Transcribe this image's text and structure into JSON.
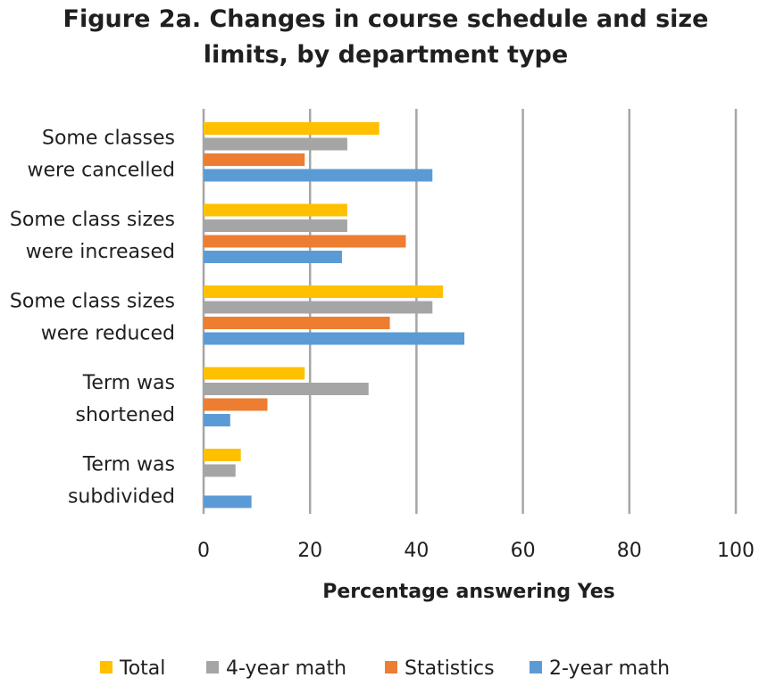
{
  "chart_data": {
    "type": "bar",
    "orientation": "horizontal",
    "title": "Figure 2a. Changes in course schedule and size limits, by department type",
    "xlabel": "Percentage answering Yes",
    "ylabel": "",
    "xlim": [
      0,
      100
    ],
    "x_ticks": [
      0,
      20,
      40,
      60,
      80,
      100
    ],
    "grid": "vertical",
    "legend_position": "bottom",
    "categories": [
      "Some classes were cancelled",
      "Some class sizes were increased",
      "Some class sizes were reduced",
      "Term was shortened",
      "Term was subdivided"
    ],
    "category_lines": [
      [
        "Some classes",
        "were cancelled"
      ],
      [
        "Some class sizes",
        "were increased"
      ],
      [
        "Some class sizes",
        "were reduced"
      ],
      [
        "Term was",
        "shortened"
      ],
      [
        "Term was",
        "subdivided"
      ]
    ],
    "series": [
      {
        "name": "Total",
        "color": "#ffc000",
        "values": [
          33,
          27,
          45,
          19,
          7
        ]
      },
      {
        "name": "4-year math",
        "color": "#a5a5a5",
        "values": [
          27,
          27,
          43,
          31,
          6
        ]
      },
      {
        "name": "Statistics",
        "color": "#ed7d31",
        "values": [
          19,
          38,
          35,
          12,
          0
        ]
      },
      {
        "name": "2-year math",
        "color": "#5b9bd5",
        "values": [
          43,
          26,
          49,
          5,
          9
        ]
      }
    ]
  }
}
